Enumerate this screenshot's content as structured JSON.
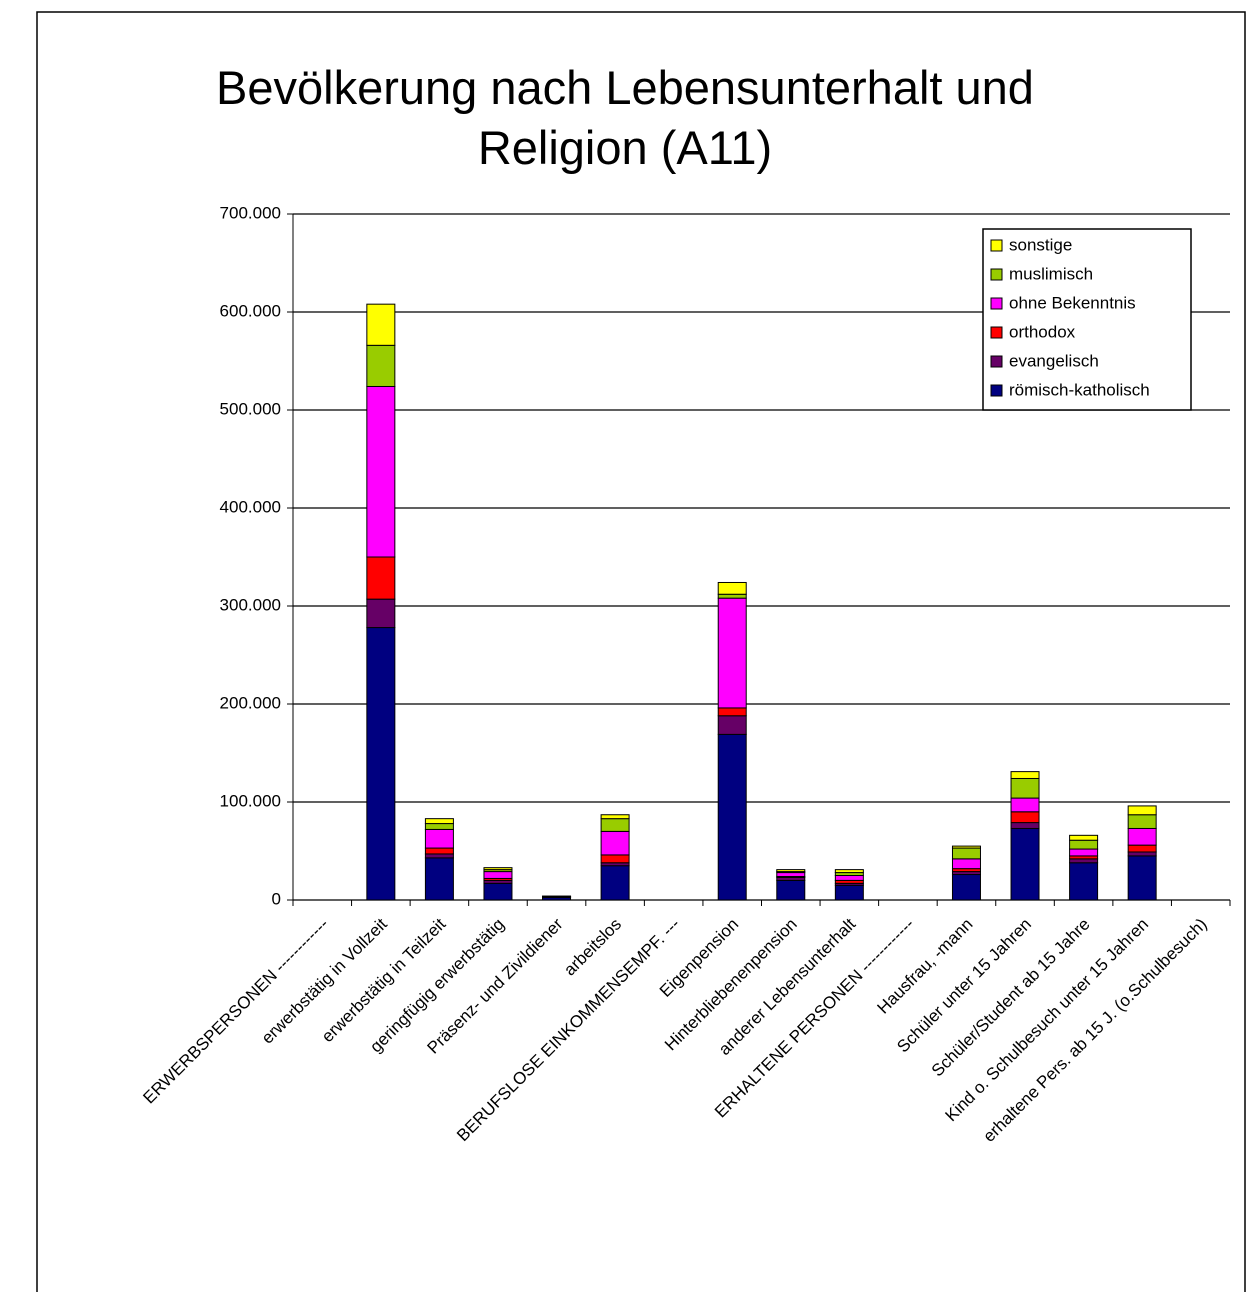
{
  "chart_data": {
    "type": "stacked_bar",
    "title": "Bevölkerung nach Lebensunterhalt und Religion (A11)",
    "categories": [
      "ERWERBSPERSONEN ------------",
      "erwerbstätig in Vollzeit",
      "erwerbstätig in Teilzeit",
      "geringfügig erwerbstätig",
      "Präsenz- und Zivildiener",
      "arbeitslos",
      "BERUFSLOSE EINKOMMENSEMPF. ---",
      "Eigenpension",
      "Hinterbliebenenpension",
      "anderer Lebensunterhalt",
      "ERHALTENE PERSONEN ------------",
      "Hausfrau, -mann",
      "Schüler unter 15 Jahren",
      "Schüler/Student ab 15 Jahre",
      "Kind o. Schulbesuch unter 15 Jahren",
      "erhaltene Pers. ab 15 J. (o.Schulbesuch)"
    ],
    "series": [
      {
        "name": "römisch-katholisch",
        "color": "#000080",
        "values": [
          null,
          278000,
          43000,
          17000,
          2500,
          35000,
          null,
          169000,
          20000,
          15000,
          null,
          26000,
          73000,
          38000,
          45000,
          null
        ]
      },
      {
        "name": "evangelisch",
        "color": "#660066",
        "values": [
          null,
          29000,
          4000,
          3000,
          300,
          3000,
          null,
          19000,
          3000,
          2000,
          null,
          3000,
          6000,
          4000,
          4000,
          null
        ]
      },
      {
        "name": "orthodox",
        "color": "#ff0000",
        "values": [
          null,
          43000,
          6000,
          2000,
          300,
          8000,
          null,
          8000,
          1000,
          3000,
          null,
          3000,
          11000,
          3000,
          7000,
          null
        ]
      },
      {
        "name": "ohne Bekenntnis",
        "color": "#ff00ff",
        "values": [
          null,
          174000,
          19000,
          7000,
          500,
          24000,
          null,
          112000,
          4000,
          5000,
          null,
          10000,
          14000,
          7000,
          17000,
          null
        ]
      },
      {
        "name": "muslimisch",
        "color": "#99cc00",
        "values": [
          null,
          42000,
          6000,
          2000,
          200,
          13000,
          null,
          4000,
          1000,
          3000,
          null,
          11000,
          20000,
          9000,
          14000,
          null
        ]
      },
      {
        "name": "sonstige",
        "color": "#ffff00",
        "values": [
          null,
          42000,
          5000,
          2000,
          200,
          4000,
          null,
          12000,
          2000,
          3000,
          null,
          2000,
          7000,
          5000,
          9000,
          null
        ]
      }
    ],
    "ylim": [
      0,
      700000
    ],
    "yticks": [
      0,
      {
        "value": 100000,
        "label": "100.000"
      },
      {
        "value": 200000,
        "label": "200.000"
      },
      {
        "value": 300000,
        "label": "300.000"
      },
      {
        "value": 400000,
        "label": "400.000"
      },
      {
        "value": 500000,
        "label": "500.000"
      },
      {
        "value": 600000,
        "label": "600.000"
      },
      {
        "value": 700000,
        "label": "700.000"
      }
    ],
    "grid": true,
    "legend": "top-right"
  }
}
